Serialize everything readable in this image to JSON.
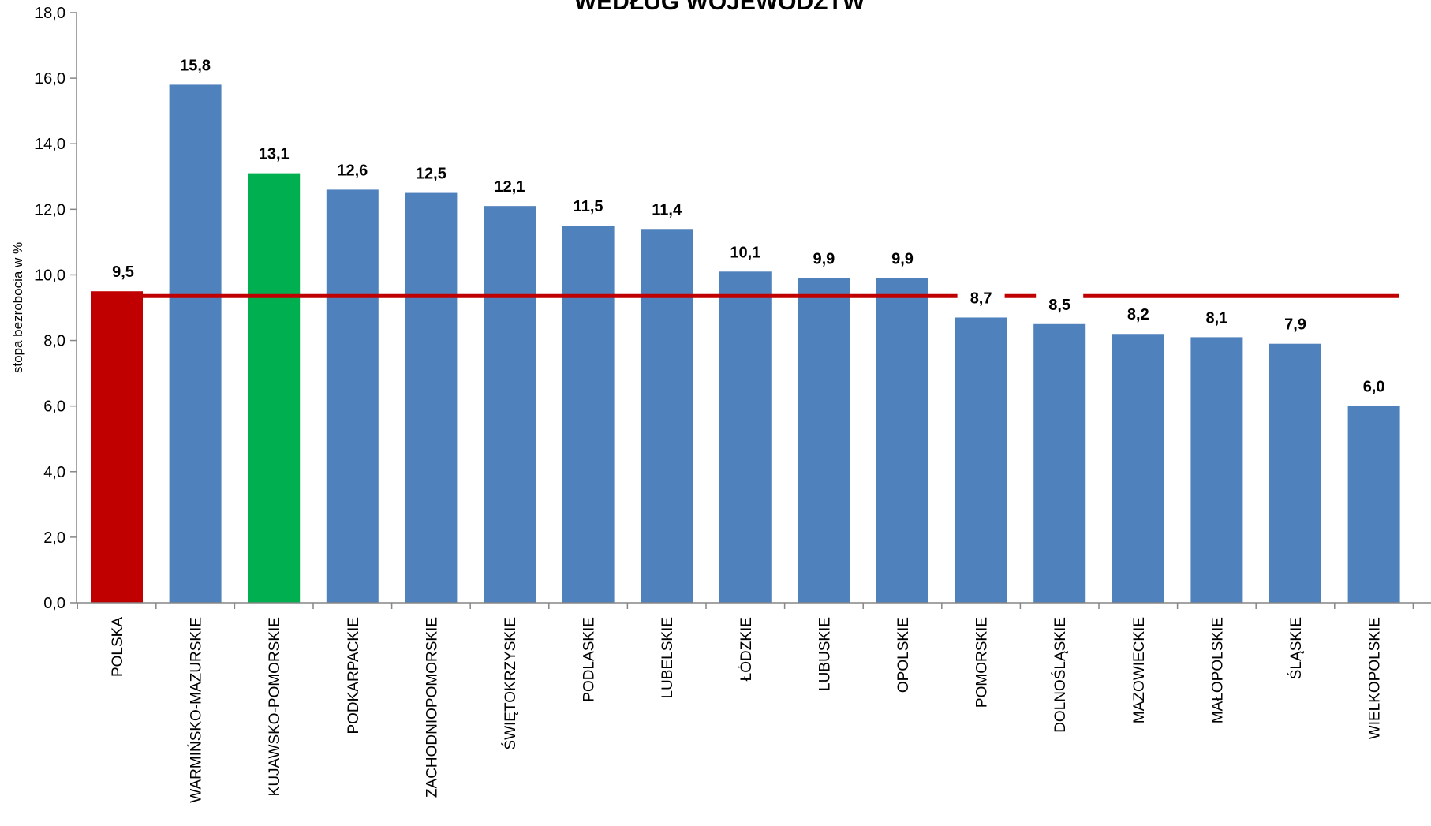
{
  "chart_data": {
    "type": "bar",
    "title": "WEDŁUG WOJEWÓDZTW",
    "ylabel": "stopa bezrobocia w %",
    "xlabel": "",
    "ylim": [
      0,
      18
    ],
    "ytick_step": 2,
    "ytick_labels": [
      "0,0",
      "2,0",
      "4,0",
      "6,0",
      "8,0",
      "10,0",
      "12,0",
      "14,0",
      "16,0",
      "18,0"
    ],
    "categories": [
      "POLSKA",
      "WARMIŃSKO-MAZURSKIE",
      "KUJAWSKO-POMORSKIE",
      "PODKARPACKIE",
      "ZACHODNIOPOMORSKIE",
      "ŚWIĘTOKRZYSKIE",
      "PODLASKIE",
      "LUBELSKIE",
      "ŁÓDZKIE",
      "LUBUSKIE",
      "OPOLSKIE",
      "POMORSKIE",
      "DOLNOŚLĄSKIE",
      "MAZOWIECKIE",
      "MAŁOPOLSKIE",
      "ŚLĄSKIE",
      "WIELKOPOLSKIE"
    ],
    "values": [
      9.5,
      15.8,
      13.1,
      12.6,
      12.5,
      12.1,
      11.5,
      11.4,
      10.1,
      9.9,
      9.9,
      8.7,
      8.5,
      8.2,
      8.1,
      7.9,
      6.0
    ],
    "value_labels": [
      "9,5",
      "15,8",
      "13,1",
      "12,6",
      "12,5",
      "12,1",
      "11,5",
      "11,4",
      "10,1",
      "9,9",
      "9,9",
      "8,7",
      "8,5",
      "8,2",
      "8,1",
      "7,9",
      "6,0"
    ],
    "bar_colors": [
      "#c00000",
      "#4f81bd",
      "#00b050",
      "#4f81bd",
      "#4f81bd",
      "#4f81bd",
      "#4f81bd",
      "#4f81bd",
      "#4f81bd",
      "#4f81bd",
      "#4f81bd",
      "#4f81bd",
      "#4f81bd",
      "#4f81bd",
      "#4f81bd",
      "#4f81bd",
      "#4f81bd"
    ],
    "reference_line": {
      "value": 9.5,
      "color": "#c00000"
    },
    "grid": false,
    "legend": "none"
  }
}
